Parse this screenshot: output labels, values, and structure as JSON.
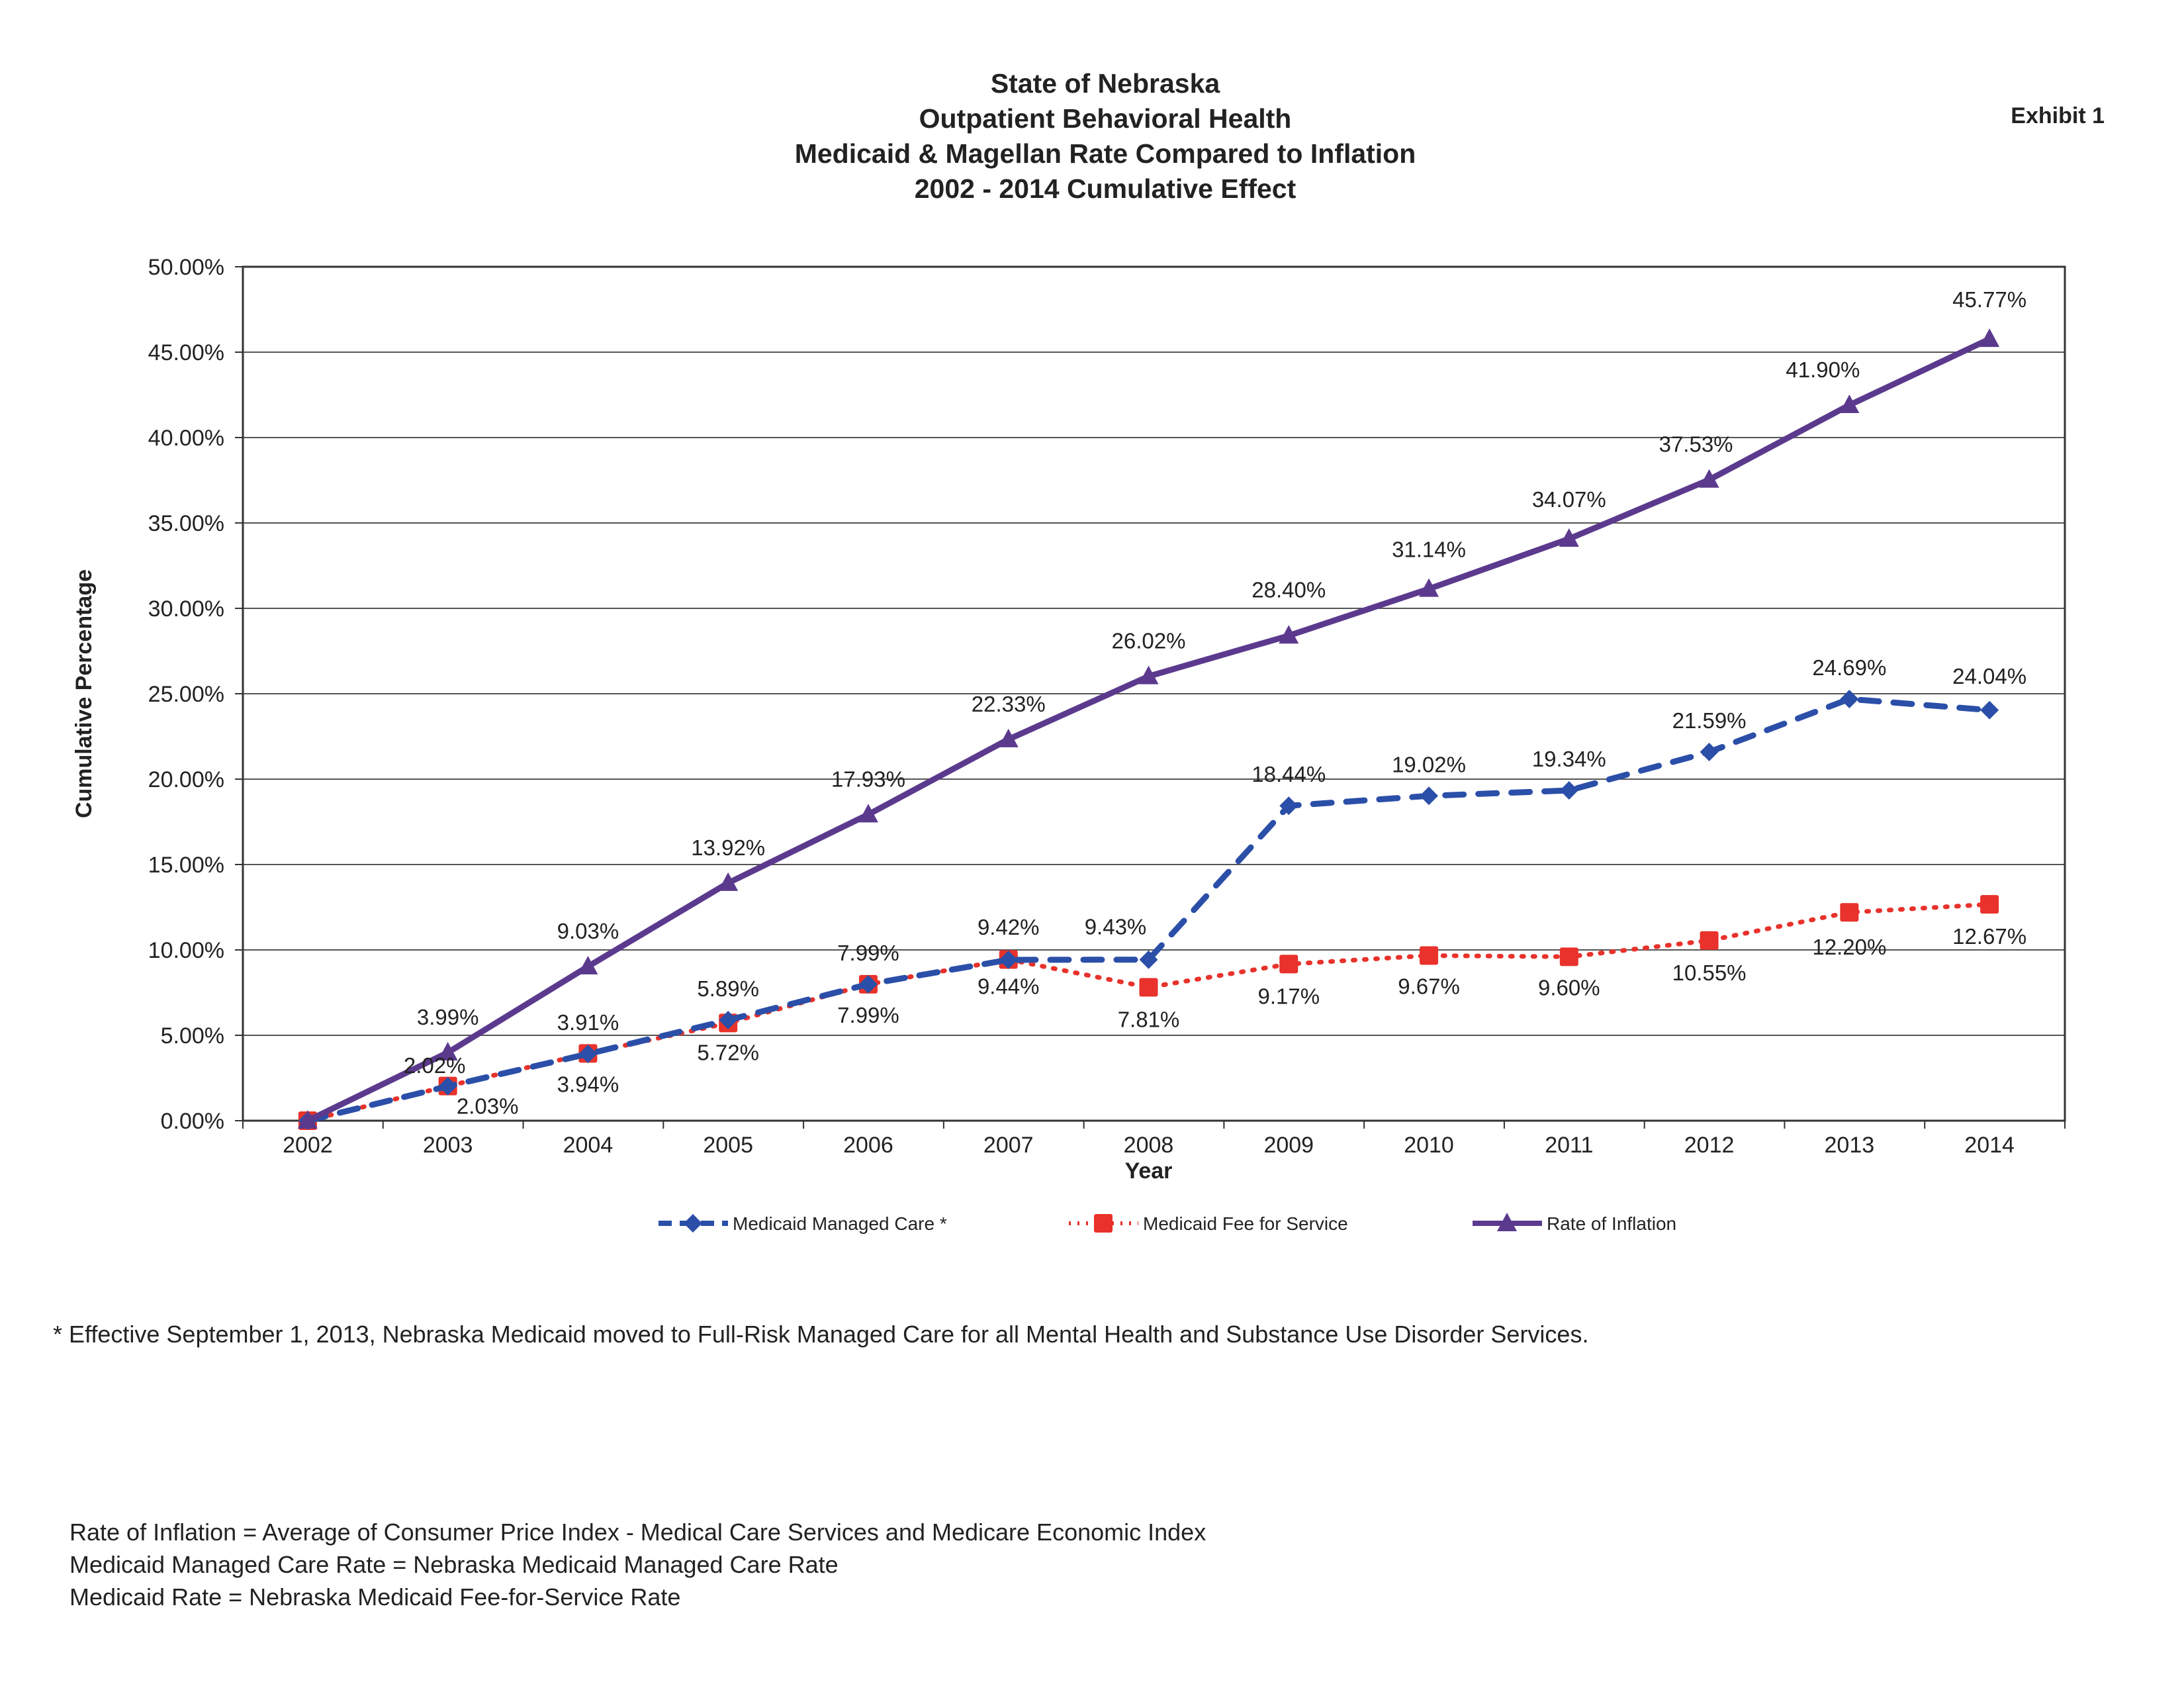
{
  "header": {
    "title_lines": [
      "State of Nebraska",
      "Outpatient Behavioral Health",
      "Medicaid & Magellan Rate Compared to Inflation",
      "2002 - 2014 Cumulative Effect"
    ],
    "exhibit_label": "Exhibit 1"
  },
  "chart_data": {
    "type": "line",
    "title": "State of Nebraska Outpatient Behavioral Health Medicaid & Magellan Rate Compared to Inflation 2002 - 2014 Cumulative Effect",
    "xlabel": "Year",
    "ylabel": "Cumulative Percentage",
    "categories": [
      "2002",
      "2003",
      "2004",
      "2005",
      "2006",
      "2007",
      "2008",
      "2009",
      "2010",
      "2011",
      "2012",
      "2013",
      "2014"
    ],
    "ylim": [
      0,
      50
    ],
    "yticks": [
      "0.00%",
      "5.00%",
      "10.00%",
      "15.00%",
      "20.00%",
      "25.00%",
      "30.00%",
      "35.00%",
      "40.00%",
      "45.00%",
      "50.00%"
    ],
    "grid": true,
    "legend_position": "bottom",
    "series": [
      {
        "name": "Medicaid Managed Care *",
        "color": "#2b4fa8",
        "line_style": "dashed",
        "marker": "diamond",
        "values": [
          0,
          2.02,
          3.91,
          5.89,
          7.99,
          9.42,
          9.43,
          18.44,
          19.02,
          19.34,
          21.59,
          24.69,
          24.04
        ],
        "labels": [
          "",
          "2.02%",
          "3.91%",
          "5.89%",
          "7.99%",
          "9.42%",
          "9.43%",
          "18.44%",
          "19.02%",
          "19.34%",
          "21.59%",
          "24.69%",
          "24.04%"
        ]
      },
      {
        "name": "Medicaid Fee for Service",
        "color": "#e8322b",
        "line_style": "dotted",
        "marker": "square",
        "values": [
          0,
          2.03,
          3.94,
          5.72,
          7.99,
          9.44,
          7.81,
          9.17,
          9.67,
          9.6,
          10.55,
          12.2,
          12.67
        ],
        "labels": [
          "",
          "2.03%",
          "3.94%",
          "5.72%",
          "7.99%",
          "9.44%",
          "7.81%",
          "9.17%",
          "9.67%",
          "9.60%",
          "10.55%",
          "12.20%",
          "12.67%"
        ]
      },
      {
        "name": "Rate of Inflation",
        "color": "#5b3a8e",
        "line_style": "solid",
        "marker": "triangle",
        "values": [
          0,
          3.99,
          9.03,
          13.92,
          17.93,
          22.33,
          26.02,
          28.4,
          31.14,
          34.07,
          37.53,
          41.9,
          45.77
        ],
        "labels": [
          "",
          "3.99%",
          "9.03%",
          "13.92%",
          "17.93%",
          "22.33%",
          "26.02%",
          "28.40%",
          "31.14%",
          "34.07%",
          "37.53%",
          "41.90%",
          "45.77%"
        ]
      }
    ]
  },
  "footnote": "*  Effective September 1, 2013, Nebraska Medicaid moved to Full-Risk Managed Care for all Mental Health and Substance Use Disorder Services.",
  "definitions": [
    "Rate of Inflation = Average of Consumer Price Index - Medical Care Services and Medicare Economic Index",
    "Medicaid Managed Care Rate = Nebraska Medicaid Managed Care Rate",
    "Medicaid Rate = Nebraska Medicaid Fee-for-Service Rate"
  ]
}
